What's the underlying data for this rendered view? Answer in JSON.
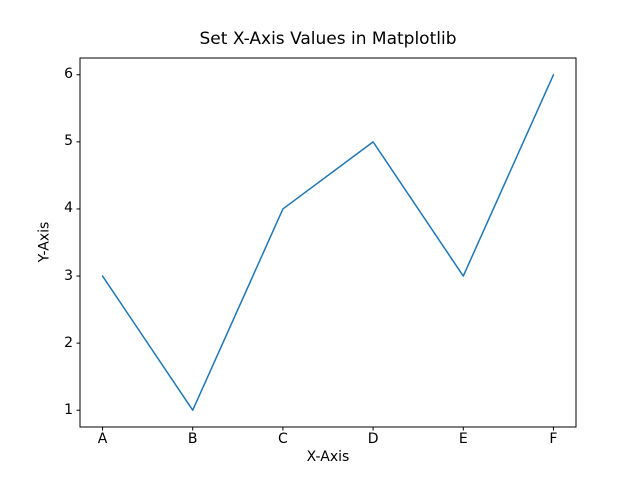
{
  "figure": {
    "background": "#ffffff",
    "spine_color": "#000000"
  },
  "chart_data": {
    "type": "line",
    "title": "Set X-Axis Values in Matplotlib",
    "xlabel": "X-Axis",
    "ylabel": "Y-Axis",
    "categories": [
      "A",
      "B",
      "C",
      "D",
      "E",
      "F"
    ],
    "values": [
      3,
      1,
      4,
      5,
      3,
      6
    ],
    "yticks": [
      1,
      2,
      3,
      4,
      5,
      6
    ],
    "ylim": [
      0.75,
      6.25
    ],
    "xlim_index": [
      -0.25,
      5.25
    ],
    "line_color": "#1f77b4",
    "line_width": 1.5,
    "grid": false,
    "legend": "none"
  }
}
